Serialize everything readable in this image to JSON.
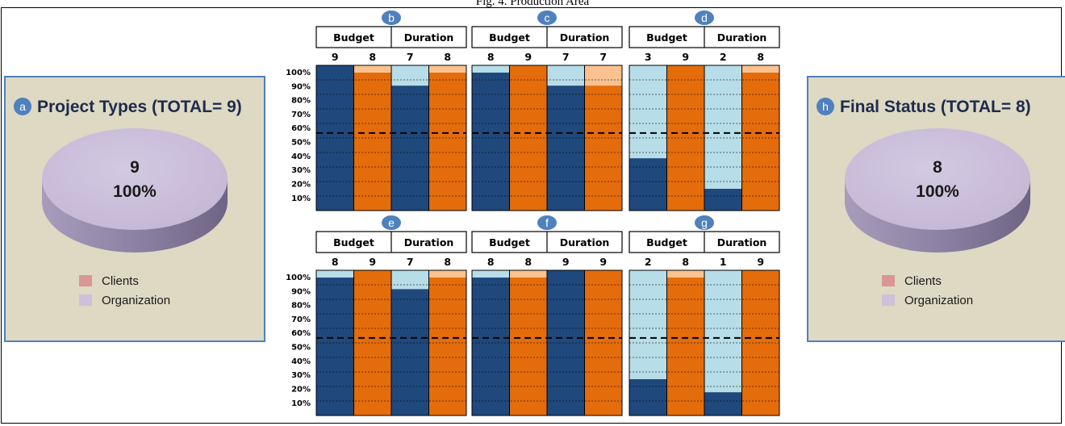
{
  "figure_title": "Fig. 4. Production Area",
  "colors": {
    "clients_budget": "#1f497d",
    "org_budget": "#e46c0a",
    "clients_duration": "#1f497d",
    "org_duration": "#e46c0a",
    "light_blue": "#b7dde8",
    "light_orange": "#fbc28f",
    "pie_top": "#ccc0da",
    "pie_side": "#8c82a0",
    "clients_legend": "#d99694",
    "org_legend": "#ccc0da",
    "badge": "#4f81bd",
    "panel_bg": "#ddd9c3",
    "panel_border": "#4f81bd"
  },
  "chart_data": [
    {
      "id": "a",
      "type": "pie",
      "title": "Project Types (TOTAL= 9)",
      "badge": "a",
      "slices": [
        {
          "label": "Clients",
          "value": 0
        },
        {
          "label": "Organization",
          "value": 9,
          "percent": "100%"
        }
      ],
      "center_value": "9",
      "center_percent": "100%",
      "legend": [
        "Clients",
        "Organization"
      ]
    },
    {
      "id": "b",
      "type": "bar",
      "stacked": true,
      "badge": "b",
      "groups": [
        "Budget",
        "Duration"
      ],
      "counts": [
        "9",
        "8",
        "7",
        "8"
      ],
      "ticks": [
        "100%",
        "90%",
        "80%",
        "70%",
        "60%",
        "50%",
        "40%",
        "30%",
        "20%",
        "10%"
      ],
      "columns": [
        {
          "group": "Budget",
          "count": 9,
          "dark": 100,
          "color": "blue"
        },
        {
          "group": "Budget",
          "count": 8,
          "dark": 95,
          "color": "orange"
        },
        {
          "group": "Duration",
          "count": 7,
          "dark": 86,
          "color": "blue"
        },
        {
          "group": "Duration",
          "count": 8,
          "dark": 95,
          "color": "orange"
        }
      ]
    },
    {
      "id": "c",
      "type": "bar",
      "stacked": true,
      "badge": "c",
      "groups": [
        "Budget",
        "Duration"
      ],
      "counts": [
        "8",
        "9",
        "7",
        "7"
      ],
      "columns": [
        {
          "group": "Budget",
          "count": 8,
          "dark": 95,
          "color": "blue"
        },
        {
          "group": "Budget",
          "count": 9,
          "dark": 100,
          "color": "orange"
        },
        {
          "group": "Duration",
          "count": 7,
          "dark": 86,
          "color": "blue"
        },
        {
          "group": "Duration",
          "count": 7,
          "dark": 86,
          "color": "orange"
        }
      ]
    },
    {
      "id": "d",
      "type": "bar",
      "stacked": true,
      "badge": "d",
      "groups": [
        "Budget",
        "Duration"
      ],
      "counts": [
        "3",
        "9",
        "2",
        "8"
      ],
      "columns": [
        {
          "group": "Budget",
          "count": 3,
          "dark": 36,
          "color": "blue"
        },
        {
          "group": "Budget",
          "count": 9,
          "dark": 100,
          "color": "orange"
        },
        {
          "group": "Duration",
          "count": 2,
          "dark": 15,
          "color": "blue"
        },
        {
          "group": "Duration",
          "count": 8,
          "dark": 95,
          "color": "orange"
        }
      ]
    },
    {
      "id": "e",
      "type": "bar",
      "stacked": true,
      "badge": "e",
      "groups": [
        "Budget",
        "Duration"
      ],
      "counts": [
        "8",
        "9",
        "7",
        "8"
      ],
      "ticks": [
        "100%",
        "90%",
        "80%",
        "70%",
        "60%",
        "50%",
        "40%",
        "30%",
        "20%",
        "10%"
      ],
      "columns": [
        {
          "group": "Budget",
          "count": 8,
          "dark": 95,
          "color": "blue"
        },
        {
          "group": "Budget",
          "count": 9,
          "dark": 100,
          "color": "orange"
        },
        {
          "group": "Duration",
          "count": 7,
          "dark": 87,
          "color": "blue"
        },
        {
          "group": "Duration",
          "count": 8,
          "dark": 95,
          "color": "orange"
        }
      ]
    },
    {
      "id": "f",
      "type": "bar",
      "stacked": true,
      "badge": "f",
      "groups": [
        "Budget",
        "Duration"
      ],
      "counts": [
        "8",
        "8",
        "9",
        "9"
      ],
      "columns": [
        {
          "group": "Budget",
          "count": 8,
          "dark": 95,
          "color": "blue"
        },
        {
          "group": "Budget",
          "count": 8,
          "dark": 95,
          "color": "orange"
        },
        {
          "group": "Duration",
          "count": 9,
          "dark": 100,
          "color": "blue"
        },
        {
          "group": "Duration",
          "count": 9,
          "dark": 100,
          "color": "orange"
        }
      ]
    },
    {
      "id": "g",
      "type": "bar",
      "stacked": true,
      "badge": "g",
      "groups": [
        "Budget",
        "Duration"
      ],
      "counts": [
        "2",
        "8",
        "1",
        "9"
      ],
      "columns": [
        {
          "group": "Budget",
          "count": 2,
          "dark": 25,
          "color": "blue"
        },
        {
          "group": "Budget",
          "count": 8,
          "dark": 95,
          "color": "orange"
        },
        {
          "group": "Duration",
          "count": 1,
          "dark": 16,
          "color": "blue"
        },
        {
          "group": "Duration",
          "count": 9,
          "dark": 100,
          "color": "orange"
        }
      ]
    },
    {
      "id": "h",
      "type": "pie",
      "title": "Final Status (TOTAL= 8)",
      "badge": "h",
      "slices": [
        {
          "label": "Clients",
          "value": 0
        },
        {
          "label": "Organization",
          "value": 8,
          "percent": "100%"
        }
      ],
      "center_value": "8",
      "center_percent": "100%",
      "legend": [
        "Clients",
        "Organization"
      ]
    }
  ]
}
